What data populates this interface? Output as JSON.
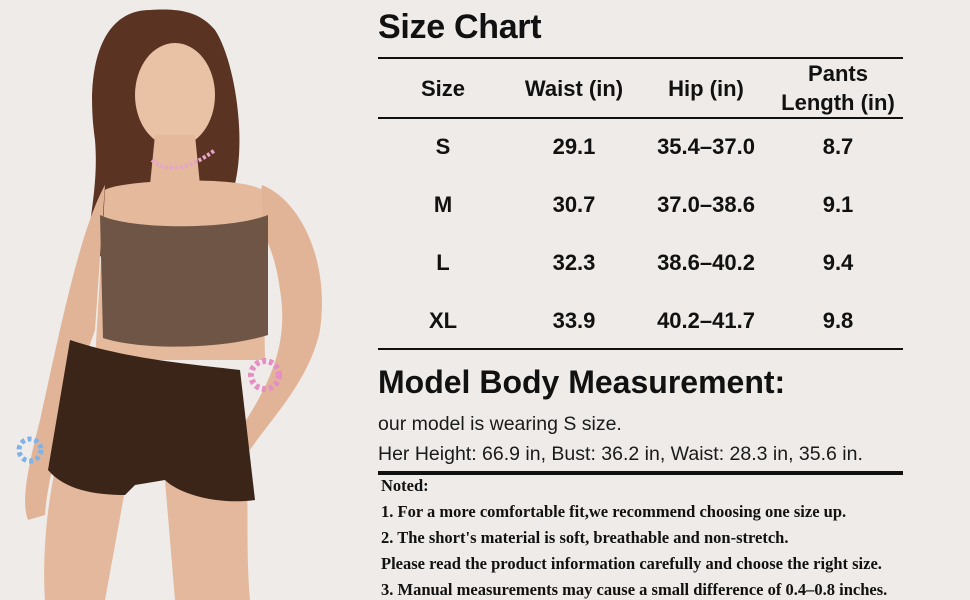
{
  "size_chart": {
    "title": "Size Chart",
    "columns": [
      "Size",
      "Waist (in)",
      "Hip (in)",
      "Pants Length (in)"
    ],
    "column_lines": [
      [
        "Size"
      ],
      [
        "Waist (in)"
      ],
      [
        "Hip (in)"
      ],
      [
        "Pants",
        "Length (in)"
      ]
    ],
    "rows": [
      [
        "S",
        "29.1",
        "35.4–37.0",
        "8.7"
      ],
      [
        "M",
        "30.7",
        "37.0–38.6",
        "9.1"
      ],
      [
        "L",
        "32.3",
        "38.6–40.2",
        "9.4"
      ],
      [
        "XL",
        "33.9",
        "40.2–41.7",
        "9.8"
      ]
    ]
  },
  "model": {
    "title": "Model Body Measurement:",
    "wearing": "our model is wearing S size.",
    "measurements": "Her Height: 66.9 in, Bust: 36.2 in, Waist: 28.3 in, 35.6 in."
  },
  "notes": {
    "heading": "Noted:",
    "lines": [
      "1. For a more comfortable fit,we recommend choosing one size up.",
      "2. The short's material is soft, breathable and non-stretch.",
      "Please read the product information carefully and choose the right size.",
      "3. Manual measurements may cause a small difference of 0.4–0.8 inches."
    ]
  },
  "colors": {
    "background": "#eeebe8",
    "top": "#6e5546",
    "shorts": "#3b2418",
    "text": "#111111"
  }
}
